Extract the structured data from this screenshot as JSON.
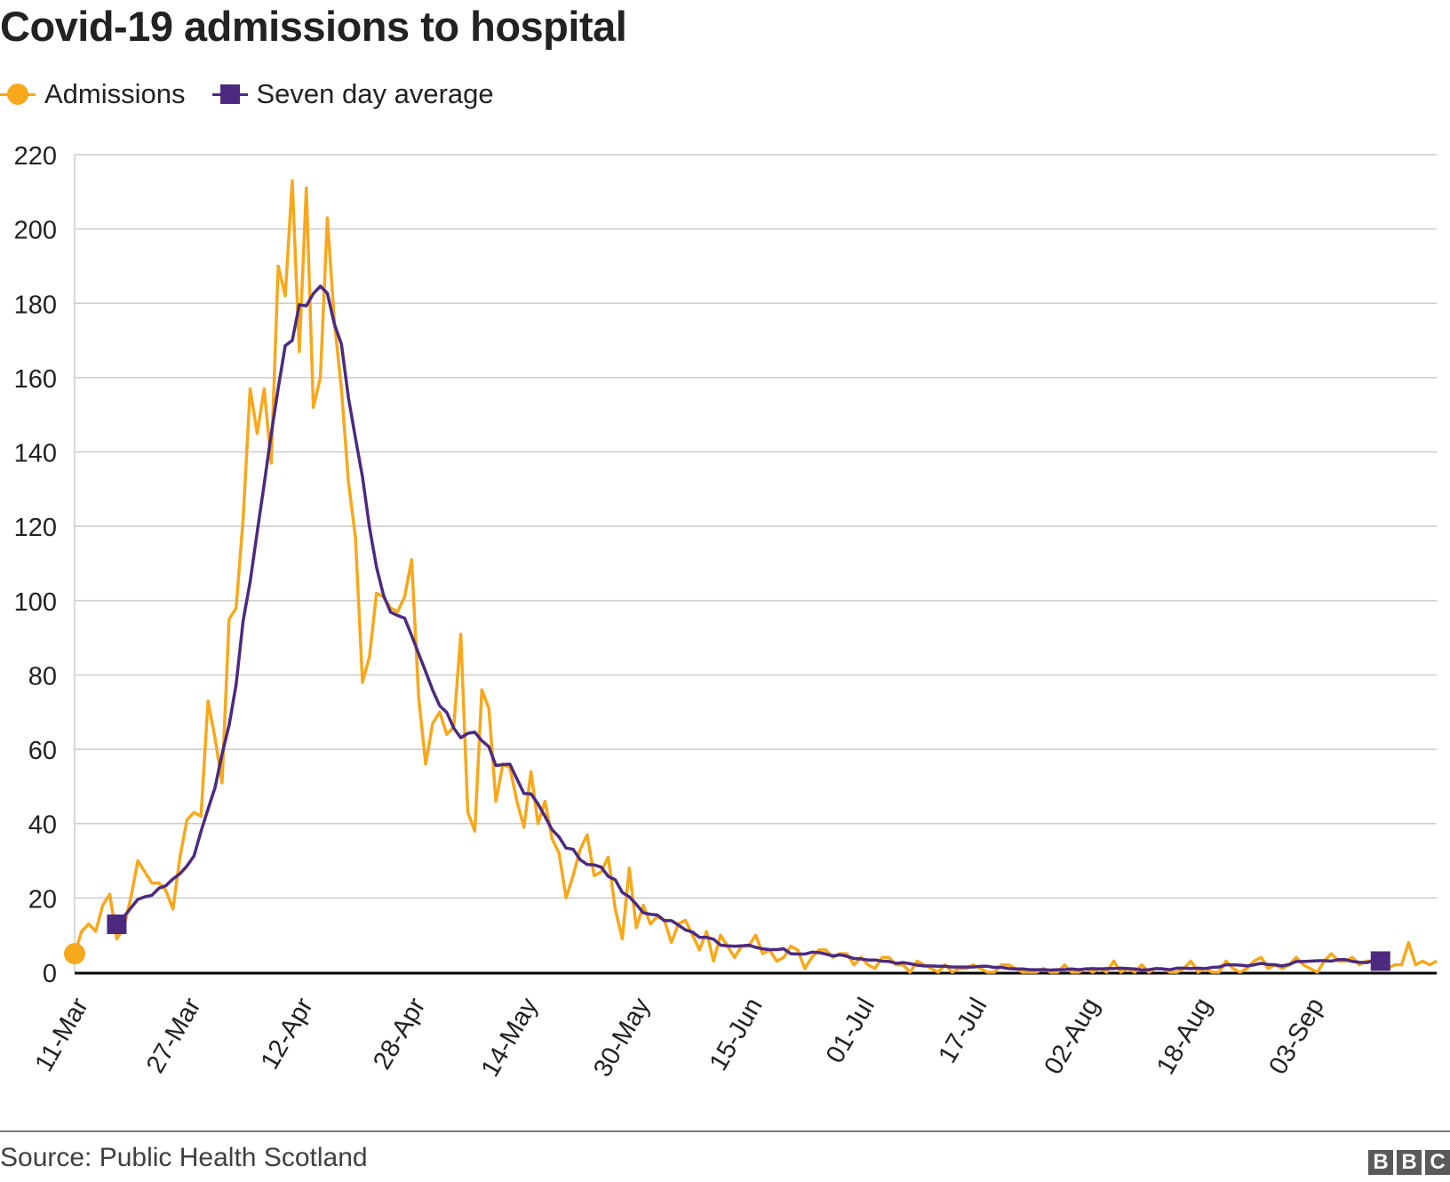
{
  "chart_data": {
    "type": "line",
    "title": "Covid-19 admissions to hospital",
    "xlabel": "",
    "ylabel": "",
    "ylim": [
      0,
      220
    ],
    "yticks": [
      0,
      20,
      40,
      60,
      80,
      100,
      120,
      140,
      160,
      180,
      200,
      220
    ],
    "xtick_labels": [
      "11-Mar",
      "27-Mar",
      "12-Apr",
      "28-Apr",
      "14-May",
      "30-May",
      "15-Jun",
      "01-Jul",
      "17-Jul",
      "02-Aug",
      "18-Aug",
      "03-Sep"
    ],
    "xtick_day_index": [
      0,
      16,
      32,
      48,
      64,
      80,
      96,
      112,
      128,
      144,
      160,
      176
    ],
    "day_count": 195,
    "legend": [
      {
        "label": "Admissions",
        "color": "#f7a81b",
        "marker": "circle"
      },
      {
        "label": "Seven day average",
        "color": "#4c2a7f",
        "marker": "square"
      }
    ],
    "series": [
      {
        "name": "Admissions",
        "color": "#f7a81b",
        "start_day_index": 0,
        "values": [
          5,
          11,
          13,
          11,
          18,
          21,
          9,
          12,
          20,
          30,
          27,
          24,
          24,
          22,
          17,
          31,
          41,
          43,
          42,
          73,
          63,
          51,
          95,
          98,
          122,
          157,
          145,
          157,
          137,
          190,
          182,
          213,
          167,
          211,
          152,
          160,
          203,
          175,
          157,
          132,
          117,
          78,
          85,
          102,
          101,
          98,
          97,
          101,
          111,
          74,
          56,
          67,
          70,
          64,
          66,
          91,
          43,
          38,
          76,
          71,
          46,
          56,
          55,
          46,
          39,
          54,
          40,
          46,
          36,
          32,
          20,
          26,
          33,
          37,
          26,
          27,
          31,
          17,
          9,
          28,
          12,
          18,
          13,
          15,
          14,
          8,
          13,
          14,
          10,
          6,
          11,
          3,
          10,
          7,
          4,
          7,
          7,
          10,
          5,
          6,
          3,
          4,
          7,
          6,
          1,
          4,
          6,
          6,
          4,
          5,
          5,
          2,
          4,
          2,
          1,
          4,
          4,
          2,
          2,
          0,
          3,
          2,
          1,
          0,
          2,
          0,
          1,
          1,
          2,
          1,
          0,
          0,
          2,
          2,
          1,
          0,
          0,
          0,
          1,
          0,
          0,
          2,
          0,
          0,
          1,
          0,
          1,
          0,
          3,
          0,
          1,
          0,
          2,
          0,
          1,
          1,
          0,
          0,
          1,
          3,
          0,
          1,
          0,
          0,
          3,
          1,
          0,
          1,
          3,
          4,
          1,
          2,
          1,
          2,
          4,
          2,
          1,
          0,
          3,
          5,
          3,
          3,
          4,
          2,
          3,
          3,
          2,
          1,
          2,
          2,
          8,
          2,
          3,
          2,
          3
        ]
      },
      {
        "name": "Seven day average",
        "color": "#4c2a7f",
        "start_day_index": 6,
        "values": [
          12.9,
          14.9,
          17.3,
          19.6,
          20.3,
          20.7,
          22.6,
          23.3,
          25.1,
          26.5,
          28.6,
          31.3,
          37.9,
          43.9,
          49.7,
          58.7,
          66.5,
          77.4,
          94.6,
          105.1,
          118.4,
          131.4,
          144.8,
          157.2,
          168.6,
          170.0,
          179.6,
          179.3,
          182.6,
          184.6,
          182.7,
          174.4,
          169.0,
          154.6,
          143.7,
          133.3,
          119.7,
          109.0,
          101.4,
          96.9,
          96.0,
          95.3,
          90.6,
          85.7,
          80.9,
          75.9,
          71.7,
          69.9,
          65.7,
          63.1,
          64.3,
          64.6,
          62.3,
          60.7,
          55.6,
          55.9,
          56.0,
          52.0,
          48.1,
          48.0,
          45.3,
          41.9,
          38.4,
          36.4,
          33.4,
          33.1,
          30.3,
          29.0,
          28.9,
          28.3,
          25.8,
          24.9,
          21.5,
          20.3,
          18.3,
          16.0,
          15.6,
          15.4,
          13.9,
          13.9,
          12.7,
          11.4,
          10.8,
          9.4,
          9.4,
          8.9,
          7.3,
          7.1,
          7.0,
          7.1,
          7.3,
          6.7,
          6.3,
          6.1,
          6.1,
          6.3,
          5.0,
          4.9,
          4.9,
          5.4,
          5.3,
          4.9,
          4.4,
          4.7,
          4.3,
          3.7,
          3.6,
          3.3,
          3.3,
          3.0,
          2.9,
          2.4,
          2.6,
          2.3,
          1.9,
          1.7,
          1.7,
          1.6,
          1.6,
          1.4,
          1.4,
          1.4,
          1.4,
          1.6,
          1.6,
          1.3,
          1.3,
          1.0,
          0.9,
          0.9,
          0.7,
          0.7,
          0.7,
          0.6,
          0.7,
          0.7,
          0.9,
          0.7,
          0.9,
          1.0,
          0.9,
          1.0,
          1.0,
          1.1,
          1.0,
          0.9,
          0.6,
          0.7,
          1.0,
          0.9,
          0.7,
          1.1,
          1.1,
          1.0,
          1.1,
          1.0,
          1.3,
          1.4,
          2.0,
          2.0,
          1.9,
          1.7,
          2.0,
          2.4,
          2.1,
          2.0,
          1.7,
          2.1,
          2.9,
          2.9,
          3.0,
          3.1,
          3.1,
          3.0,
          3.4,
          3.4,
          2.9,
          2.7,
          2.6,
          3.1,
          3.0
        ]
      }
    ]
  },
  "source": "Source: Public Health Scotland",
  "logo": [
    "B",
    "B",
    "C"
  ]
}
